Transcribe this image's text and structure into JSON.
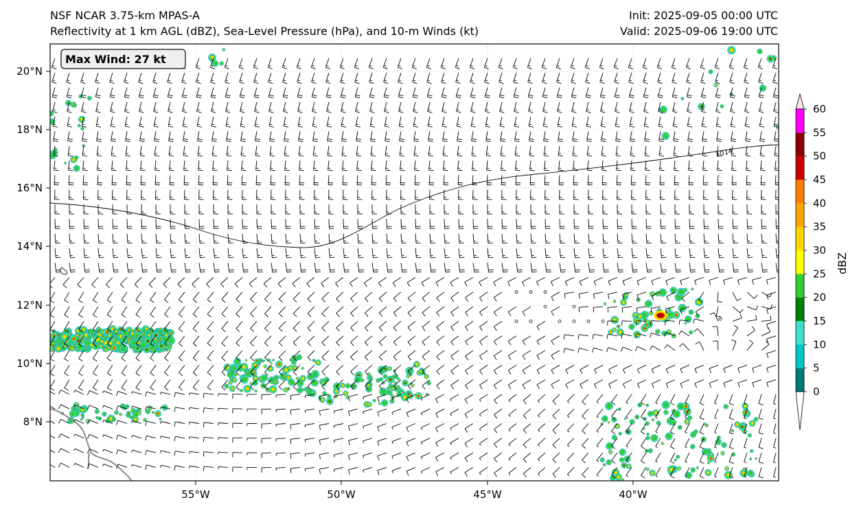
{
  "header": {
    "model": "NSF NCAR 3.75-km MPAS-A",
    "fields": "Reflectivity at 1 km AGL (dBZ), Sea-Level Pressure (hPa), and 10-m Winds (kt)",
    "init": "Init: 2025-09-05 00:00 UTC",
    "valid": "Valid: 2025-09-06 19:00 UTC"
  },
  "max_wind": {
    "label": "Max Wind: 27 kt"
  },
  "isobar": {
    "label": "1014"
  },
  "axes": {
    "lat_labels": [
      "20°N",
      "18°N",
      "16°N",
      "14°N",
      "12°N",
      "10°N",
      "8°N"
    ],
    "lon_labels": [
      "55°W",
      "50°W",
      "45°W",
      "40°W"
    ]
  },
  "colorbar": {
    "label": "dBZ",
    "ticks": [
      "0",
      "5",
      "10",
      "15",
      "20",
      "25",
      "30",
      "35",
      "40",
      "45",
      "50",
      "55",
      "60"
    ],
    "colors": [
      "#007a7a",
      "#00c8c8",
      "#40e0d0",
      "#008000",
      "#32cd32",
      "#ffff00",
      "#ffd700",
      "#ffa500",
      "#ff7f00",
      "#cc0000",
      "#8b0000",
      "#ff00ff",
      "#ffe4e1"
    ]
  },
  "colors": {
    "coast": "#888888",
    "isobar": "#000000",
    "barb": "#000000"
  }
}
